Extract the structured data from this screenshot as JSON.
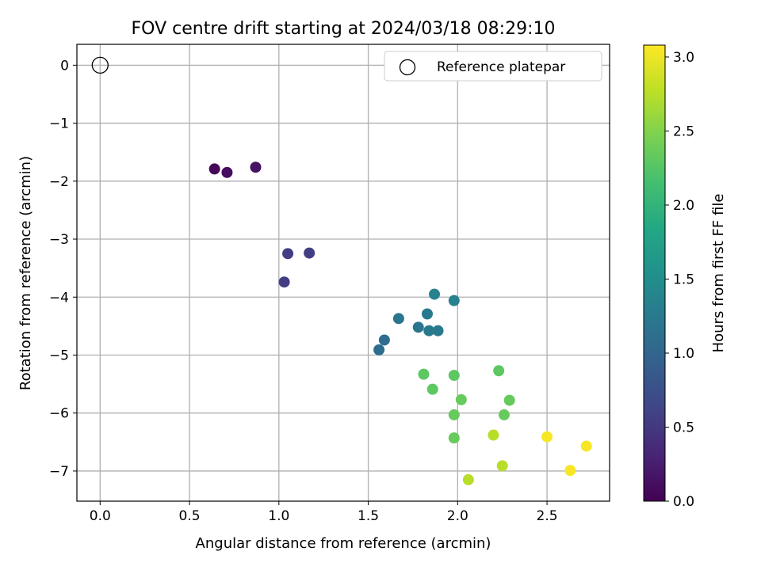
{
  "chart_data": {
    "type": "scatter",
    "title": "FOV centre drift starting at 2024/03/18 08:29:10",
    "xlabel": "Angular distance from reference (arcmin)",
    "ylabel": "Rotation from reference (arcmin)",
    "xlim": [
      -0.13,
      2.85
    ],
    "ylim": [
      -7.52,
      0.36
    ],
    "xticks": [
      0.0,
      0.5,
      1.0,
      1.5,
      2.0,
      2.5
    ],
    "xtick_labels": [
      "0.0",
      "0.5",
      "1.0",
      "1.5",
      "2.0",
      "2.5"
    ],
    "yticks": [
      0,
      -1,
      -2,
      -3,
      -4,
      -5,
      -6,
      -7
    ],
    "ytick_labels": [
      "0",
      "−1",
      "−2",
      "−3",
      "−4",
      "−5",
      "−6",
      "−7"
    ],
    "grid": true,
    "legend": {
      "entries": [
        "Reference platepar"
      ],
      "placement": "top-right"
    },
    "reference_point": {
      "x": 0.0,
      "y": 0.0
    },
    "colorbar": {
      "label": "Hours from first FF file",
      "range": [
        0.0,
        3.08
      ],
      "ticks": [
        0.0,
        0.5,
        1.0,
        1.5,
        2.0,
        2.5,
        3.0
      ],
      "tick_labels": [
        "0.0",
        "0.5",
        "1.0",
        "1.5",
        "2.0",
        "2.5",
        "3.0"
      ],
      "colormap": "viridis"
    },
    "points": [
      {
        "x": 0.64,
        "y": -1.79,
        "c": 0.05
      },
      {
        "x": 0.71,
        "y": -1.85,
        "c": 0.1
      },
      {
        "x": 0.87,
        "y": -1.76,
        "c": 0.15
      },
      {
        "x": 1.05,
        "y": -3.25,
        "c": 0.55
      },
      {
        "x": 1.17,
        "y": -3.24,
        "c": 0.55
      },
      {
        "x": 1.03,
        "y": -3.74,
        "c": 0.55
      },
      {
        "x": 1.87,
        "y": -3.95,
        "c": 1.35
      },
      {
        "x": 1.98,
        "y": -4.06,
        "c": 1.35
      },
      {
        "x": 1.67,
        "y": -4.37,
        "c": 1.2
      },
      {
        "x": 1.83,
        "y": -4.29,
        "c": 1.25
      },
      {
        "x": 1.78,
        "y": -4.52,
        "c": 1.2
      },
      {
        "x": 1.84,
        "y": -4.58,
        "c": 1.25
      },
      {
        "x": 1.89,
        "y": -4.58,
        "c": 1.25
      },
      {
        "x": 1.59,
        "y": -4.74,
        "c": 1.1
      },
      {
        "x": 1.56,
        "y": -4.91,
        "c": 1.1
      },
      {
        "x": 1.81,
        "y": -5.33,
        "c": 2.3
      },
      {
        "x": 1.98,
        "y": -5.35,
        "c": 2.3
      },
      {
        "x": 2.23,
        "y": -5.27,
        "c": 2.3
      },
      {
        "x": 1.86,
        "y": -5.59,
        "c": 2.3
      },
      {
        "x": 2.02,
        "y": -5.77,
        "c": 2.35
      },
      {
        "x": 2.29,
        "y": -5.78,
        "c": 2.35
      },
      {
        "x": 1.98,
        "y": -6.03,
        "c": 2.35
      },
      {
        "x": 2.26,
        "y": -6.03,
        "c": 2.35
      },
      {
        "x": 1.98,
        "y": -6.43,
        "c": 2.35
      },
      {
        "x": 2.2,
        "y": -6.38,
        "c": 2.75
      },
      {
        "x": 2.5,
        "y": -6.41,
        "c": 3.05
      },
      {
        "x": 2.72,
        "y": -6.57,
        "c": 3.05
      },
      {
        "x": 2.25,
        "y": -6.91,
        "c": 2.75
      },
      {
        "x": 2.63,
        "y": -6.99,
        "c": 3.05
      },
      {
        "x": 2.06,
        "y": -7.15,
        "c": 2.75
      }
    ]
  }
}
